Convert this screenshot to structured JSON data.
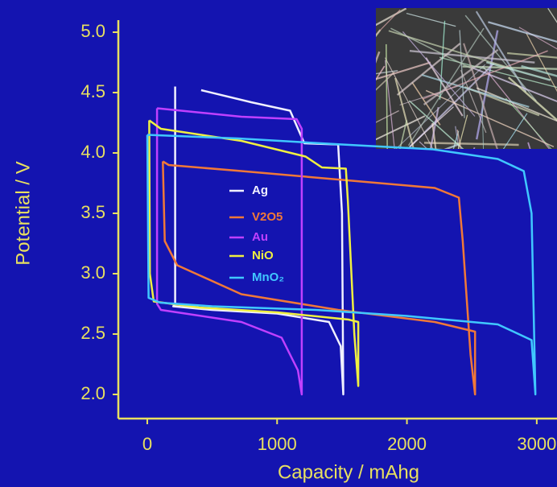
{
  "chart_data": {
    "type": "line",
    "x_label": "Capacity / mAhg",
    "y_label": "Potential / V",
    "xlim": [
      -223,
      3156
    ],
    "ylim": [
      1.8,
      5.2
    ],
    "xticks": [
      0,
      1000,
      2000,
      3000
    ],
    "yticks": [
      {
        "value": 2,
        "label": "2.0"
      },
      2.5,
      {
        "value": 3,
        "label": "3.0"
      },
      3.5,
      {
        "value": 4,
        "label": "4.0"
      },
      4.5,
      {
        "value": 5,
        "label": "5.0"
      }
    ],
    "series": [
      {
        "name": "Ag",
        "color": "#f0f0ff",
        "x": [
          215,
          215,
          null,
          415,
          800,
          1100,
          1210,
          1470,
          1500,
          1510,
          1490,
          1400,
          1000,
          500,
          200,
          215
        ],
        "values": [
          2.75,
          4.55,
          null,
          4.52,
          4.42,
          4.35,
          4.08,
          4.07,
          3.5,
          2.0,
          2.4,
          2.6,
          2.67,
          2.7,
          2.73,
          2.75
        ]
      },
      {
        "name": "V2O5",
        "color": "#f07838",
        "x": [
          120,
          135,
          230,
          725,
          1470,
          2215,
          2525,
          2525,
          2490,
          2430,
          2400,
          2215,
          725,
          165,
          120
        ],
        "values": [
          3.93,
          3.27,
          3.07,
          2.83,
          2.7,
          2.6,
          2.52,
          2.0,
          2.33,
          3.27,
          3.63,
          3.71,
          3.85,
          3.9,
          3.93
        ]
      },
      {
        "name": "Au",
        "color": "#c040ff",
        "x": [
          75,
          725,
          1150,
          1190,
          1190,
          1160,
          1035,
          725,
          105,
          75,
          75
        ],
        "values": [
          4.37,
          4.3,
          4.28,
          4.2,
          2.0,
          2.2,
          2.47,
          2.6,
          2.7,
          2.75,
          4.37
        ]
      },
      {
        "name": "NiO",
        "color": "#f0f040",
        "x": [
          15,
          105,
          725,
          1220,
          1345,
          1530,
          1545,
          1595,
          1625,
          1625,
          1550,
          1000,
          400,
          50,
          20,
          15
        ],
        "values": [
          4.27,
          4.2,
          4.1,
          3.97,
          3.88,
          3.87,
          3.6,
          2.5,
          2.07,
          2.6,
          2.62,
          2.68,
          2.72,
          2.77,
          3.0,
          4.27
        ]
      },
      {
        "name": "MnO₂",
        "color": "#40c8ff",
        "x": [
          0,
          700,
          1500,
          2200,
          2700,
          2900,
          2960,
          2990,
          2960,
          2700,
          2000,
          1300,
          500,
          100,
          10,
          0
        ],
        "values": [
          4.15,
          4.12,
          4.07,
          4.03,
          3.95,
          3.85,
          3.5,
          2.0,
          2.45,
          2.58,
          2.65,
          2.7,
          2.73,
          2.76,
          2.8,
          4.15
        ]
      }
    ]
  }
}
